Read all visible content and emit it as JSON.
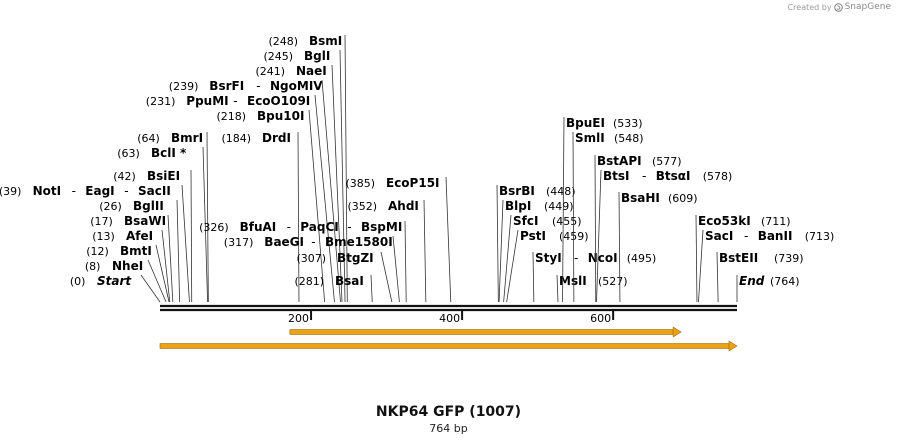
{
  "credit": {
    "prefix": "Created by",
    "brand": "SnapGene"
  },
  "title": "NKP64 GFP (1007)",
  "subtitle": "764 bp",
  "map": {
    "length": 764,
    "ticks": [
      200,
      400,
      600
    ],
    "rows": [
      {
        "y": 285,
        "segments": [
          {
            "pos": "(0)",
            "name": "Start",
            "italic": true,
            "site": 0
          }
        ]
      },
      {
        "y": 270,
        "segments": [
          {
            "pos": "(8)",
            "name": "NheI",
            "site": 8
          }
        ]
      },
      {
        "y": 255,
        "segments": [
          {
            "pos": "(12)",
            "name": "BmtI",
            "site": 12
          }
        ]
      },
      {
        "y": 240,
        "segments": [
          {
            "pos": "(13)",
            "name": "AfeI",
            "site": 13
          }
        ]
      },
      {
        "y": 225,
        "segments": [
          {
            "pos": "(17)",
            "name": "BsaWI",
            "site": 17
          }
        ]
      },
      {
        "y": 210,
        "segments": [
          {
            "pos": "(26)",
            "name": "BglII",
            "site": 26
          }
        ]
      },
      {
        "y": 195,
        "segments": [
          {
            "pos": "(39)",
            "name": "NotI",
            "site": 39
          },
          {
            "name": "EagI",
            "site": 39
          },
          {
            "name": "SacII",
            "site": 39
          }
        ]
      },
      {
        "y": 180,
        "segments": [
          {
            "pos": "(42)",
            "name": "BsiEI",
            "site": 42
          }
        ]
      },
      {
        "y": 157,
        "segments": [
          {
            "pos": "(63)",
            "name": "BclI *",
            "site": 63
          }
        ]
      },
      {
        "y": 142,
        "segments": [
          {
            "pos": "(64)",
            "name": "BmrI",
            "site": 64
          }
        ]
      },
      {
        "y": 142,
        "segments": [
          {
            "pos": "(184)",
            "name": "DrdI",
            "site": 184
          }
        ]
      },
      {
        "y": 120,
        "segments": [
          {
            "pos": "(218)",
            "name": "Bpu10I",
            "site": 218
          }
        ]
      },
      {
        "y": 105,
        "segments": [
          {
            "pos": "(231)",
            "name": "PpuMI",
            "site": 231
          },
          {
            "name": "EcoO109I",
            "site": 231
          }
        ]
      },
      {
        "y": 90,
        "segments": [
          {
            "pos": "(239)",
            "name": "BsrFI",
            "site": 239
          },
          {
            "name": "NgoMIV",
            "site": 239
          }
        ]
      },
      {
        "y": 75,
        "segments": [
          {
            "pos": "(241)",
            "name": "NaeI",
            "site": 241
          }
        ]
      },
      {
        "y": 60,
        "segments": [
          {
            "pos": "(245)",
            "name": "BglI",
            "site": 245
          }
        ]
      },
      {
        "y": 45,
        "segments": [
          {
            "pos": "(248)",
            "name": "BsmI",
            "site": 248
          }
        ]
      },
      {
        "y": 285,
        "segments": [
          {
            "pos": "(281)",
            "name": "BsaI",
            "site": 281
          }
        ]
      },
      {
        "y": 262,
        "segments": [
          {
            "pos": "(307)",
            "name": "BtgZI",
            "site": 307
          }
        ]
      },
      {
        "y": 246,
        "segments": [
          {
            "pos": "(317)",
            "name": "BaeGI",
            "site": 317
          },
          {
            "name": "Bme1580I",
            "site": 317
          }
        ]
      },
      {
        "y": 231,
        "segments": [
          {
            "pos": "(326)",
            "name": "BfuAI",
            "site": 326
          },
          {
            "name": "PaqCI",
            "site": 326
          },
          {
            "name": "BspMI",
            "site": 326
          }
        ]
      },
      {
        "y": 210,
        "segments": [
          {
            "pos": "(352)",
            "name": "AhdI",
            "site": 352
          }
        ]
      },
      {
        "y": 187,
        "segments": [
          {
            "pos": "(385)",
            "name": "EcoP15I",
            "site": 385
          }
        ]
      },
      {
        "y": 195,
        "segments": [
          {
            "name": "BsrBI",
            "pos": "(448)",
            "site": 448
          }
        ]
      },
      {
        "y": 210,
        "segments": [
          {
            "name": "BlpI",
            "pos": "(449)",
            "site": 449
          }
        ]
      },
      {
        "y": 225,
        "segments": [
          {
            "name": "SfcI",
            "pos": "(455)",
            "site": 455
          }
        ]
      },
      {
        "y": 240,
        "segments": [
          {
            "name": "PstI",
            "pos": "(459)",
            "site": 459
          }
        ]
      },
      {
        "y": 262,
        "segments": [
          {
            "name": "StyI",
            "site": 495
          },
          {
            "name": "NcoI",
            "pos": "(495)",
            "site": 495
          }
        ]
      },
      {
        "y": 285,
        "segments": [
          {
            "name": "MslI",
            "pos": "(527)",
            "site": 527
          }
        ]
      },
      {
        "y": 127,
        "segments": [
          {
            "name": "BpuEI",
            "pos": "(533)",
            "site": 533
          }
        ]
      },
      {
        "y": 142,
        "segments": [
          {
            "name": "SmlI",
            "pos": "(548)",
            "site": 548
          }
        ]
      },
      {
        "y": 165,
        "segments": [
          {
            "name": "BstAPI",
            "pos": "(577)",
            "site": 577
          }
        ]
      },
      {
        "y": 180,
        "segments": [
          {
            "name": "BtsI",
            "site": 578
          },
          {
            "name": "BtsαI",
            "pos": "(578)",
            "site": 578
          }
        ]
      },
      {
        "y": 202,
        "segments": [
          {
            "name": "BsaHI",
            "pos": "(609)",
            "site": 609
          }
        ]
      },
      {
        "y": 225,
        "segments": [
          {
            "name": "Eco53kI",
            "pos": "(711)",
            "site": 711
          }
        ]
      },
      {
        "y": 240,
        "segments": [
          {
            "name": "SacI",
            "site": 711
          },
          {
            "name": "BanII",
            "pos": "(713)",
            "site": 713
          }
        ]
      },
      {
        "y": 262,
        "segments": [
          {
            "name": "BstEII",
            "pos": "(739)",
            "site": 739
          }
        ]
      },
      {
        "y": 285,
        "segments": [
          {
            "name": "End",
            "italic": true,
            "pos": "(764)",
            "site": 764
          }
        ]
      }
    ],
    "features": [
      {
        "start": 172,
        "end": 690,
        "color": "#e8a317"
      },
      {
        "start": 0,
        "end": 764,
        "color": "#e8a317"
      }
    ]
  }
}
